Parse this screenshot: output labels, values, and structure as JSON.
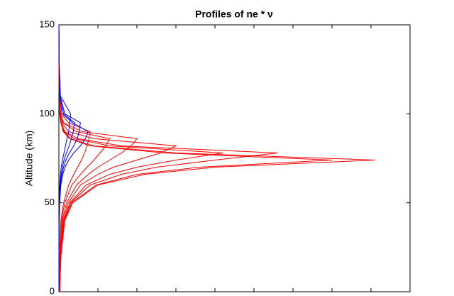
{
  "chart_data": {
    "type": "line",
    "title": "Profiles of ne * ν",
    "y_label": "Altitude (km)",
    "y": [
      0,
      20,
      40,
      50,
      60,
      66,
      70,
      74,
      78,
      82,
      86,
      90,
      95,
      100,
      110,
      130,
      150
    ],
    "xlim": [
      0,
      9
    ],
    "xticks": [
      1,
      2,
      3,
      4,
      5,
      6,
      7,
      8
    ],
    "ylim": [
      0,
      150
    ],
    "yticks": [
      0,
      50,
      100,
      150
    ],
    "series": [
      {
        "color": "#ff0000",
        "values": [
          0.02,
          0.05,
          0.15,
          0.35,
          1.0,
          2.2,
          4.0,
          8.1,
          3.0,
          0.9,
          0.3,
          0.12,
          0.05,
          0.02,
          0.01,
          0.005,
          0
        ]
      },
      {
        "color": "#ff0000",
        "values": [
          0.02,
          0.05,
          0.14,
          0.33,
          0.95,
          2.0,
          3.6,
          7.0,
          2.7,
          0.8,
          0.28,
          0.11,
          0.05,
          0.02,
          0.01,
          0.005,
          0
        ]
      },
      {
        "color": "#ff0000",
        "values": [
          0.02,
          0.05,
          0.13,
          0.3,
          0.8,
          1.6,
          2.5,
          4.0,
          5.6,
          1.6,
          0.5,
          0.15,
          0.06,
          0.02,
          0.01,
          0.005,
          0
        ]
      },
      {
        "color": "#ff0000",
        "values": [
          0.02,
          0.04,
          0.12,
          0.28,
          0.7,
          1.3,
          2.0,
          3.0,
          4.2,
          1.3,
          0.4,
          0.13,
          0.05,
          0.02,
          0.01,
          0.005,
          0
        ]
      },
      {
        "color": "#ff0000",
        "values": [
          0.01,
          0.04,
          0.1,
          0.24,
          0.55,
          1.0,
          1.4,
          2.0,
          2.6,
          3.0,
          0.9,
          0.25,
          0.07,
          0.03,
          0.01,
          0.005,
          0
        ]
      },
      {
        "color": "#ff0000",
        "values": [
          0.01,
          0.03,
          0.08,
          0.2,
          0.45,
          0.75,
          1.0,
          1.3,
          1.6,
          1.85,
          2.0,
          0.6,
          0.12,
          0.04,
          0.01,
          0.005,
          0
        ]
      },
      {
        "color": "#ff0000",
        "values": [
          0.01,
          0.02,
          0.06,
          0.15,
          0.33,
          0.55,
          0.72,
          0.9,
          1.05,
          1.2,
          1.3,
          0.45,
          0.1,
          0.03,
          0.01,
          0.005,
          0
        ]
      },
      {
        "color": "#ff0000",
        "values": [
          0.01,
          0.02,
          0.05,
          0.12,
          0.25,
          0.38,
          0.48,
          0.58,
          0.66,
          0.72,
          0.77,
          0.8,
          0.25,
          0.05,
          0.01,
          0.005,
          0
        ]
      },
      {
        "color": "#0000ff",
        "values": [
          0,
          0,
          0.01,
          0.02,
          0.05,
          0.1,
          0.16,
          0.25,
          0.38,
          0.55,
          0.68,
          0.75,
          0.35,
          0.08,
          0.02,
          0.005,
          0
        ]
      },
      {
        "color": "#0000ff",
        "values": [
          0,
          0,
          0.01,
          0.02,
          0.04,
          0.08,
          0.12,
          0.18,
          0.27,
          0.38,
          0.47,
          0.52,
          0.55,
          0.15,
          0.03,
          0.005,
          0
        ]
      },
      {
        "color": "#0000ff",
        "values": [
          0,
          0,
          0.01,
          0.015,
          0.03,
          0.06,
          0.09,
          0.13,
          0.19,
          0.26,
          0.32,
          0.37,
          0.4,
          0.12,
          0.025,
          0.005,
          0
        ]
      },
      {
        "color": "#0000ff",
        "values": [
          0,
          0,
          0.005,
          0.01,
          0.02,
          0.04,
          0.06,
          0.09,
          0.13,
          0.17,
          0.21,
          0.25,
          0.28,
          0.3,
          0.04,
          0.005,
          0
        ]
      }
    ]
  }
}
